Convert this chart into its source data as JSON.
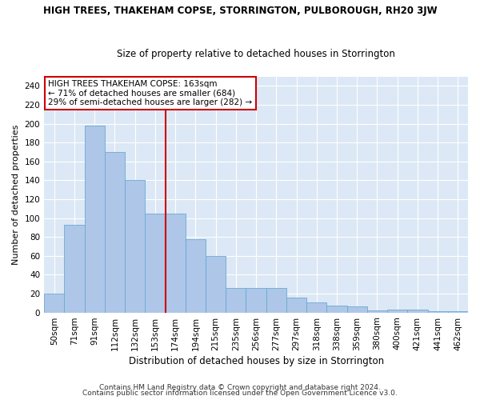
{
  "title": "HIGH TREES, THAKEHAM COPSE, STORRINGTON, PULBOROUGH, RH20 3JW",
  "subtitle": "Size of property relative to detached houses in Storrington",
  "xlabel": "Distribution of detached houses by size in Storrington",
  "ylabel": "Number of detached properties",
  "categories": [
    "50sqm",
    "71sqm",
    "91sqm",
    "112sqm",
    "132sqm",
    "153sqm",
    "174sqm",
    "194sqm",
    "215sqm",
    "235sqm",
    "256sqm",
    "277sqm",
    "297sqm",
    "318sqm",
    "338sqm",
    "359sqm",
    "380sqm",
    "400sqm",
    "421sqm",
    "441sqm",
    "462sqm"
  ],
  "values": [
    20,
    93,
    198,
    170,
    140,
    105,
    105,
    78,
    60,
    26,
    26,
    26,
    16,
    11,
    7,
    6,
    2,
    3,
    3,
    1,
    1
  ],
  "bar_color": "#aec6e8",
  "bar_edge_color": "#6aaad4",
  "ylim": [
    0,
    250
  ],
  "yticks": [
    0,
    20,
    40,
    60,
    80,
    100,
    120,
    140,
    160,
    180,
    200,
    220,
    240
  ],
  "vline_x_index": 5.5,
  "vline_color": "#cc0000",
  "annotation_line1": "HIGH TREES THAKEHAM COPSE: 163sqm",
  "annotation_line2": "← 71% of detached houses are smaller (684)",
  "annotation_line3": "29% of semi-detached houses are larger (282) →",
  "bg_color": "#dce8f5",
  "grid_color": "#ffffff",
  "footer1": "Contains HM Land Registry data © Crown copyright and database right 2024.",
  "footer2": "Contains public sector information licensed under the Open Government Licence v3.0.",
  "title_fontsize": 8.5,
  "subtitle_fontsize": 8.5,
  "ylabel_fontsize": 8,
  "xlabel_fontsize": 8.5,
  "tick_fontsize": 7.5,
  "footer_fontsize": 6.5
}
